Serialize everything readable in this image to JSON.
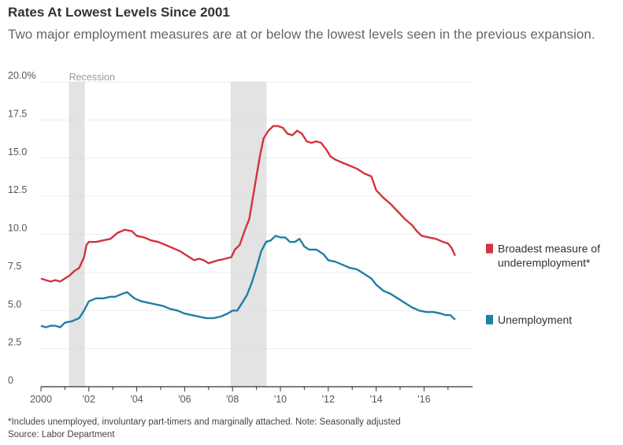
{
  "chart_data": {
    "type": "line",
    "title": "Rates At Lowest Levels Since 2001",
    "subtitle": "Two major employment measures are at or below the lowest levels seen in the previous expansion.",
    "x_range": [
      2000,
      2017.5
    ],
    "xticks": [
      {
        "value": 2000,
        "label": "2000"
      },
      {
        "value": 2002,
        "label": "'02"
      },
      {
        "value": 2004,
        "label": "'04"
      },
      {
        "value": 2006,
        "label": "'06"
      },
      {
        "value": 2008,
        "label": "'08"
      },
      {
        "value": 2010,
        "label": "'10"
      },
      {
        "value": 2012,
        "label": "'12"
      },
      {
        "value": 2014,
        "label": "'14"
      },
      {
        "value": 2016,
        "label": "'16"
      }
    ],
    "ylim": [
      0,
      20
    ],
    "yticks": [
      {
        "value": 0,
        "label": "0"
      },
      {
        "value": 2.5,
        "label": "2.5"
      },
      {
        "value": 5,
        "label": "5.0"
      },
      {
        "value": 7.5,
        "label": "7.5"
      },
      {
        "value": 10,
        "label": "10.0"
      },
      {
        "value": 12.5,
        "label": "12.5"
      },
      {
        "value": 15,
        "label": "15.0"
      },
      {
        "value": 17.5,
        "label": "17.5"
      },
      {
        "value": 20,
        "label": "20.0%"
      }
    ],
    "grid": true,
    "recessions": [
      {
        "start": 2001.17,
        "end": 2001.83
      },
      {
        "start": 2007.92,
        "end": 2009.42
      }
    ],
    "recession_label": "Recession",
    "series": [
      {
        "name": "Broadest measure of underemployment*",
        "legend_lines": [
          "Broadest measure of",
          "underemployment*"
        ],
        "color": "#d1343e",
        "points": [
          [
            2000.0,
            7.1
          ],
          [
            2000.2,
            7.0
          ],
          [
            2000.4,
            6.9
          ],
          [
            2000.6,
            7.0
          ],
          [
            2000.8,
            6.9
          ],
          [
            2001.0,
            7.1
          ],
          [
            2001.2,
            7.3
          ],
          [
            2001.4,
            7.6
          ],
          [
            2001.6,
            7.8
          ],
          [
            2001.8,
            8.5
          ],
          [
            2001.9,
            9.3
          ],
          [
            2002.0,
            9.5
          ],
          [
            2002.3,
            9.5
          ],
          [
            2002.6,
            9.6
          ],
          [
            2002.9,
            9.7
          ],
          [
            2003.2,
            10.1
          ],
          [
            2003.5,
            10.3
          ],
          [
            2003.8,
            10.2
          ],
          [
            2004.0,
            9.9
          ],
          [
            2004.3,
            9.8
          ],
          [
            2004.6,
            9.6
          ],
          [
            2004.9,
            9.5
          ],
          [
            2005.2,
            9.3
          ],
          [
            2005.5,
            9.1
          ],
          [
            2005.8,
            8.9
          ],
          [
            2006.1,
            8.6
          ],
          [
            2006.4,
            8.3
          ],
          [
            2006.6,
            8.4
          ],
          [
            2006.8,
            8.3
          ],
          [
            2007.0,
            8.1
          ],
          [
            2007.2,
            8.2
          ],
          [
            2007.4,
            8.3
          ],
          [
            2007.7,
            8.4
          ],
          [
            2007.95,
            8.5
          ],
          [
            2008.1,
            9.0
          ],
          [
            2008.3,
            9.3
          ],
          [
            2008.5,
            10.2
          ],
          [
            2008.7,
            11.0
          ],
          [
            2008.85,
            12.4
          ],
          [
            2009.0,
            13.8
          ],
          [
            2009.15,
            15.2
          ],
          [
            2009.3,
            16.3
          ],
          [
            2009.5,
            16.8
          ],
          [
            2009.7,
            17.1
          ],
          [
            2009.9,
            17.1
          ],
          [
            2010.1,
            17.0
          ],
          [
            2010.3,
            16.6
          ],
          [
            2010.5,
            16.5
          ],
          [
            2010.7,
            16.8
          ],
          [
            2010.9,
            16.6
          ],
          [
            2011.1,
            16.1
          ],
          [
            2011.3,
            16.0
          ],
          [
            2011.5,
            16.1
          ],
          [
            2011.7,
            16.0
          ],
          [
            2011.9,
            15.6
          ],
          [
            2012.1,
            15.1
          ],
          [
            2012.3,
            14.9
          ],
          [
            2012.6,
            14.7
          ],
          [
            2012.9,
            14.5
          ],
          [
            2013.2,
            14.3
          ],
          [
            2013.5,
            14.0
          ],
          [
            2013.8,
            13.8
          ],
          [
            2014.0,
            12.9
          ],
          [
            2014.3,
            12.4
          ],
          [
            2014.6,
            12.0
          ],
          [
            2014.9,
            11.5
          ],
          [
            2015.2,
            11.0
          ],
          [
            2015.5,
            10.6
          ],
          [
            2015.7,
            10.2
          ],
          [
            2015.9,
            9.9
          ],
          [
            2016.2,
            9.8
          ],
          [
            2016.5,
            9.7
          ],
          [
            2016.8,
            9.5
          ],
          [
            2017.0,
            9.4
          ],
          [
            2017.15,
            9.1
          ],
          [
            2017.3,
            8.6
          ]
        ]
      },
      {
        "name": "Unemployment",
        "legend_lines": [
          "Unemployment"
        ],
        "color": "#1f7fa6",
        "points": [
          [
            2000.0,
            4.0
          ],
          [
            2000.2,
            3.9
          ],
          [
            2000.4,
            4.0
          ],
          [
            2000.6,
            4.0
          ],
          [
            2000.8,
            3.9
          ],
          [
            2001.0,
            4.2
          ],
          [
            2001.3,
            4.3
          ],
          [
            2001.6,
            4.5
          ],
          [
            2001.8,
            5.0
          ],
          [
            2002.0,
            5.6
          ],
          [
            2002.3,
            5.8
          ],
          [
            2002.6,
            5.8
          ],
          [
            2002.9,
            5.9
          ],
          [
            2003.1,
            5.9
          ],
          [
            2003.4,
            6.1
          ],
          [
            2003.6,
            6.2
          ],
          [
            2003.9,
            5.8
          ],
          [
            2004.2,
            5.6
          ],
          [
            2004.5,
            5.5
          ],
          [
            2004.8,
            5.4
          ],
          [
            2005.1,
            5.3
          ],
          [
            2005.4,
            5.1
          ],
          [
            2005.7,
            5.0
          ],
          [
            2006.0,
            4.8
          ],
          [
            2006.3,
            4.7
          ],
          [
            2006.6,
            4.6
          ],
          [
            2006.9,
            4.5
          ],
          [
            2007.2,
            4.5
          ],
          [
            2007.5,
            4.6
          ],
          [
            2007.8,
            4.8
          ],
          [
            2008.0,
            5.0
          ],
          [
            2008.2,
            5.0
          ],
          [
            2008.4,
            5.5
          ],
          [
            2008.6,
            6.0
          ],
          [
            2008.8,
            6.8
          ],
          [
            2009.0,
            7.8
          ],
          [
            2009.2,
            8.9
          ],
          [
            2009.4,
            9.5
          ],
          [
            2009.6,
            9.6
          ],
          [
            2009.8,
            9.9
          ],
          [
            2010.0,
            9.8
          ],
          [
            2010.2,
            9.8
          ],
          [
            2010.4,
            9.5
          ],
          [
            2010.6,
            9.5
          ],
          [
            2010.8,
            9.7
          ],
          [
            2011.0,
            9.2
          ],
          [
            2011.2,
            9.0
          ],
          [
            2011.5,
            9.0
          ],
          [
            2011.8,
            8.7
          ],
          [
            2012.0,
            8.3
          ],
          [
            2012.3,
            8.2
          ],
          [
            2012.6,
            8.0
          ],
          [
            2012.9,
            7.8
          ],
          [
            2013.2,
            7.7
          ],
          [
            2013.5,
            7.4
          ],
          [
            2013.8,
            7.1
          ],
          [
            2014.0,
            6.7
          ],
          [
            2014.3,
            6.3
          ],
          [
            2014.6,
            6.1
          ],
          [
            2014.9,
            5.8
          ],
          [
            2015.2,
            5.5
          ],
          [
            2015.5,
            5.2
          ],
          [
            2015.8,
            5.0
          ],
          [
            2016.1,
            4.9
          ],
          [
            2016.4,
            4.9
          ],
          [
            2016.7,
            4.8
          ],
          [
            2016.9,
            4.7
          ],
          [
            2017.1,
            4.7
          ],
          [
            2017.3,
            4.4
          ]
        ]
      }
    ],
    "footnote": "*Includes unemployed, involuntary part-timers and marginally attached. Note: Seasonally adjusted",
    "source": "Source: Labor Department"
  }
}
